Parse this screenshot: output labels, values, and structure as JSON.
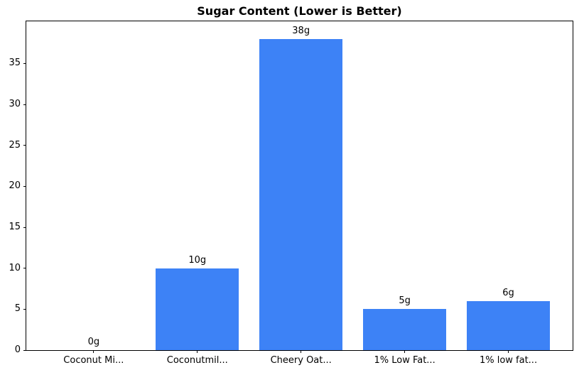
{
  "chart_data": {
    "type": "bar",
    "title": "Sugar Content (Lower is Better)",
    "categories": [
      "Coconut Mi...",
      "Coconutmil...",
      "Cheery Oat...",
      "1% Low Fat...",
      "1% low fat..."
    ],
    "values": [
      0,
      10,
      38,
      5,
      6
    ],
    "bar_labels": [
      "0g",
      "10g",
      "38g",
      "5g",
      "6g"
    ],
    "xlabel": "",
    "ylabel": "",
    "yticks": [
      0,
      5,
      10,
      15,
      20,
      25,
      30,
      35
    ],
    "ylim": [
      0,
      40.15
    ],
    "xlim": [
      -0.65,
      4.62
    ],
    "bar_width_units": 0.8,
    "grid": false,
    "legend": "none",
    "bar_color": "#3d82f6",
    "axis_color": "#000000",
    "text_color": "#000000",
    "background_color": "#ffffff"
  }
}
